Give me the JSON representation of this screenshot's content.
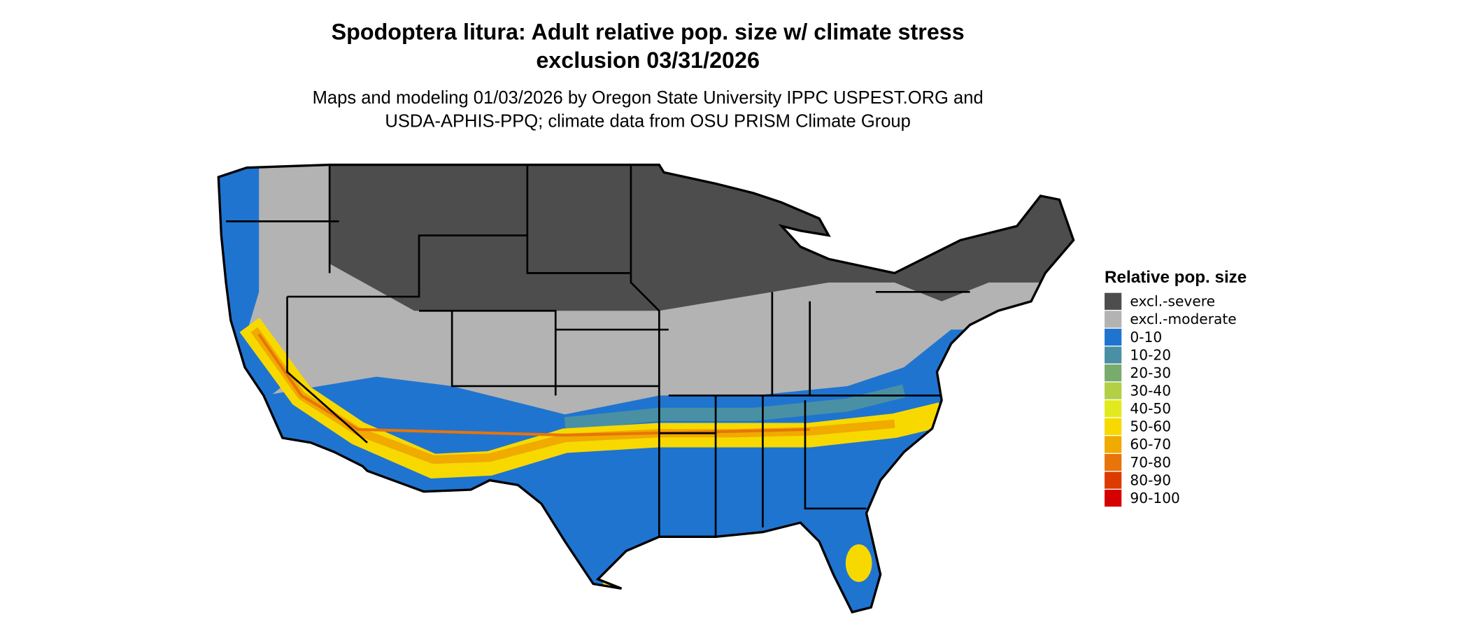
{
  "title": [
    "Spodoptera litura: Adult relative pop. size w/ climate stress",
    "exclusion 03/31/2026"
  ],
  "subtitle": [
    "Maps and modeling 01/03/2026 by Oregon State University IPPC USPEST.ORG and",
    "USDA-APHIS-PPQ; climate data from OSU PRISM Climate Group"
  ],
  "legend": {
    "title": "Relative pop. size",
    "items": [
      {
        "label": "excl.-severe",
        "color": "#4d4d4d"
      },
      {
        "label": "excl.-moderate",
        "color": "#b3b3b3"
      },
      {
        "label": "0-10",
        "color": "#1f74d0"
      },
      {
        "label": "10-20",
        "color": "#4a90a4"
      },
      {
        "label": "20-30",
        "color": "#78ab6e"
      },
      {
        "label": "30-40",
        "color": "#b2cf45"
      },
      {
        "label": "40-50",
        "color": "#e2ea1e"
      },
      {
        "label": "50-60",
        "color": "#f7d900"
      },
      {
        "label": "60-70",
        "color": "#f0aa00"
      },
      {
        "label": "70-80",
        "color": "#e8740a"
      },
      {
        "label": "80-90",
        "color": "#dd3a00"
      },
      {
        "label": "90-100",
        "color": "#d60000"
      }
    ]
  }
}
